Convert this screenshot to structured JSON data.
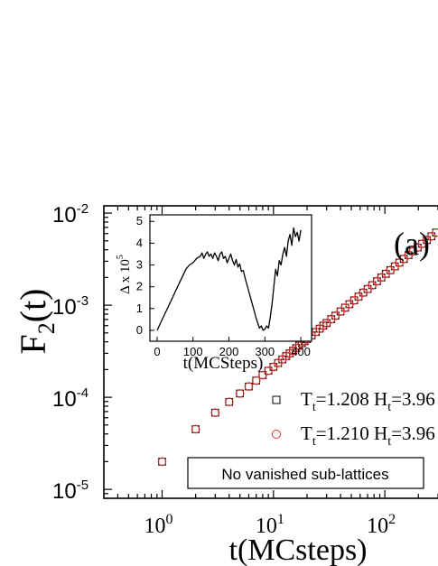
{
  "chart_data": [
    {
      "type": "scatter",
      "panel_label": "(a)",
      "xlabel": "t(MCsteps)",
      "ylabel": "F",
      "ylabel_sub": "2",
      "ylabel_tail": "(t)",
      "x_scale": "log",
      "y_scale": "log",
      "xlim": [
        0.3,
        300
      ],
      "ylim": [
        8e-06,
        0.012
      ],
      "x_ticks": [
        {
          "value": 1,
          "base": "10",
          "exp": "0"
        },
        {
          "value": 10,
          "base": "10",
          "exp": "1"
        },
        {
          "value": 100,
          "base": "10",
          "exp": "2"
        }
      ],
      "y_ticks": [
        {
          "value": 1e-05,
          "base": "10",
          "exp": "-5"
        },
        {
          "value": 0.0001,
          "base": "10",
          "exp": "-4"
        },
        {
          "value": 0.001,
          "base": "10",
          "exp": "-3"
        },
        {
          "value": 0.01,
          "base": "10",
          "exp": "-2"
        }
      ],
      "grid": false,
      "legend_position": "right",
      "annotation": "No vanished sub-lattices",
      "series": [
        {
          "name": "T_t=1.208 H_t=3.96",
          "legend_T": "T",
          "legend_T_sub": "t",
          "legend_T_val": "=1.208 H",
          "legend_H_sub": "t",
          "legend_H_val": "=3.96",
          "marker": "square",
          "color": "#000000",
          "x": [
            1,
            2,
            3,
            4,
            5,
            6,
            7,
            8,
            9,
            10,
            11,
            12,
            13,
            14,
            15,
            16,
            17,
            18,
            19,
            20,
            22,
            24,
            26,
            28,
            30,
            33,
            36,
            40,
            44,
            48,
            53,
            58,
            64,
            70,
            77,
            85,
            93,
            102,
            112,
            123,
            135,
            148,
            163,
            179,
            197,
            216,
            238,
            262,
            288
          ],
          "y": [
            2e-05,
            4.5e-05,
            6.8e-05,
            8.9e-05,
            0.00011,
            0.000131,
            0.000152,
            0.000174,
            0.000194,
            0.000214,
            0.000236,
            0.000258,
            0.00028,
            0.0003,
            0.00032,
            0.000342,
            0.000364,
            0.000386,
            0.000406,
            0.000428,
            0.00047,
            0.000512,
            0.000556,
            0.0006,
            0.00064,
            0.000705,
            0.00077,
            0.000855,
            0.00094,
            0.001025,
            0.00113,
            0.00124,
            0.00137,
            0.0015,
            0.00165,
            0.00182,
            0.002,
            0.00219,
            0.0024,
            0.00264,
            0.0029,
            0.00318,
            0.0035,
            0.00385,
            0.00423,
            0.00464,
            0.0051,
            0.0056,
            0.00615
          ]
        },
        {
          "name": "T_t=1.210 H_t=3.96",
          "legend_T": "T",
          "legend_T_sub": "t",
          "legend_T_val": "=1.210 H",
          "legend_H_sub": "t",
          "legend_H_val": "=3.96",
          "marker": "circle",
          "color": "#e8302a",
          "x": [
            1,
            2,
            3,
            4,
            5,
            6,
            7,
            8,
            9,
            10,
            11,
            12,
            13,
            14,
            15,
            16,
            17,
            18,
            19,
            20,
            22,
            24,
            26,
            28,
            30,
            33,
            36,
            40,
            44,
            48,
            53,
            58,
            64,
            70,
            77,
            85,
            93,
            102,
            112,
            123,
            135,
            148,
            163,
            179,
            197,
            216,
            238,
            262,
            288
          ],
          "y": [
            2e-05,
            4.5e-05,
            6.8e-05,
            8.9e-05,
            0.00011,
            0.000131,
            0.000152,
            0.000174,
            0.000194,
            0.000214,
            0.000236,
            0.000258,
            0.00028,
            0.0003,
            0.00032,
            0.000342,
            0.000364,
            0.000386,
            0.000406,
            0.000428,
            0.00047,
            0.000512,
            0.000556,
            0.0006,
            0.00064,
            0.000705,
            0.00077,
            0.000855,
            0.00094,
            0.001025,
            0.00113,
            0.00124,
            0.00137,
            0.0015,
            0.00165,
            0.00182,
            0.002,
            0.00219,
            0.0024,
            0.00264,
            0.0029,
            0.00318,
            0.0035,
            0.00385,
            0.00423,
            0.00464,
            0.0051,
            0.0056,
            0.00615
          ]
        }
      ]
    },
    {
      "type": "line",
      "role": "inset",
      "xlabel": "t(MCSteps)",
      "ylabel": "Δ x 10",
      "ylabel_exp": "5",
      "xlim": [
        -20,
        430
      ],
      "ylim": [
        -0.5,
        5.3
      ],
      "x_ticks": [
        "0",
        "100",
        "200",
        "300",
        "400"
      ],
      "y_ticks": [
        "0",
        "1",
        "2",
        "3",
        "4",
        "5"
      ],
      "color": "#000000",
      "x": [
        0,
        10,
        20,
        30,
        40,
        50,
        60,
        70,
        80,
        90,
        100,
        110,
        120,
        125,
        130,
        135,
        140,
        145,
        150,
        155,
        160,
        165,
        170,
        175,
        180,
        185,
        190,
        195,
        200,
        205,
        210,
        215,
        220,
        225,
        230,
        235,
        240,
        245,
        250,
        255,
        260,
        265,
        270,
        275,
        280,
        285,
        290,
        295,
        300,
        305,
        310,
        315,
        320,
        325,
        330,
        335,
        340,
        345,
        350,
        355,
        360,
        365,
        370,
        375,
        380,
        385,
        390,
        395,
        400
      ],
      "y": [
        0,
        0.35,
        0.7,
        1.05,
        1.4,
        1.75,
        2.1,
        2.45,
        2.8,
        3.0,
        3.1,
        3.3,
        3.4,
        3.55,
        3.3,
        3.5,
        3.6,
        3.4,
        3.5,
        3.3,
        3.55,
        3.4,
        3.2,
        3.5,
        3.6,
        3.3,
        3.4,
        3.1,
        3.3,
        3.5,
        3.2,
        3.0,
        3.25,
        2.9,
        3.05,
        2.7,
        2.75,
        2.4,
        2.1,
        1.8,
        1.5,
        1.2,
        0.9,
        0.6,
        0.35,
        0.1,
        0.2,
        0.0,
        0.05,
        0.2,
        0.1,
        0.6,
        1.2,
        2.0,
        2.8,
        2.5,
        3.2,
        3.0,
        3.5,
        3.8,
        3.4,
        4.1,
        4.4,
        3.9,
        4.7,
        4.3,
        4.5,
        4.1,
        4.6
      ]
    }
  ]
}
